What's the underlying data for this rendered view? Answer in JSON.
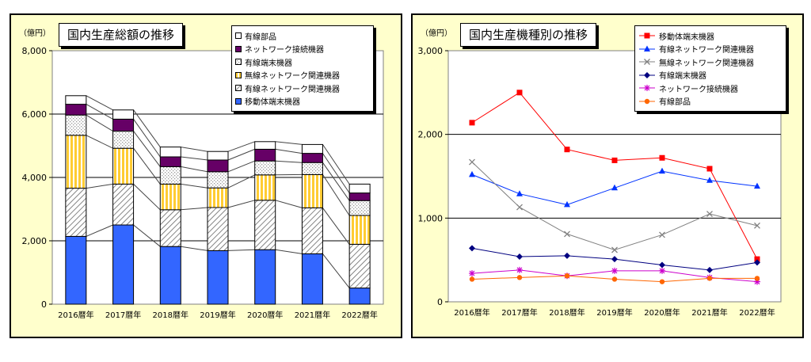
{
  "chart_data": [
    {
      "type": "bar",
      "stacked": true,
      "title": "国内生産総額の推移",
      "unit": "（億円）",
      "ylim": [
        0,
        8000
      ],
      "yticks": [
        "0",
        "2,000",
        "4,000",
        "6,000",
        "8,000"
      ],
      "categories": [
        "2016暦年",
        "2017暦年",
        "2018暦年",
        "2019暦年",
        "2020暦年",
        "2021暦年",
        "2022暦年"
      ],
      "legend": [
        "有線部品",
        "ネットワーク接続機器",
        "有線端末機器",
        "無線ネットワーク関連機器",
        "有線ネットワーク関連機器",
        "移動体端末機器"
      ],
      "series": [
        {
          "name": "移動体端末機器",
          "fill": "#3366ff",
          "values": [
            2140,
            2500,
            1820,
            1690,
            1720,
            1590,
            510
          ]
        },
        {
          "name": "有線ネットワーク関連機器",
          "fill": "hatch",
          "values": [
            1520,
            1290,
            1160,
            1360,
            1560,
            1450,
            1380
          ]
        },
        {
          "name": "無線ネットワーク関連機器",
          "fill": "vstripe",
          "values": [
            1670,
            1130,
            810,
            620,
            800,
            1050,
            910
          ]
        },
        {
          "name": "有線端末機器",
          "fill": "dots",
          "values": [
            640,
            540,
            550,
            510,
            440,
            380,
            470
          ]
        },
        {
          "name": "ネットワーク接続機器",
          "fill": "#660066",
          "values": [
            340,
            380,
            310,
            370,
            370,
            290,
            240
          ]
        },
        {
          "name": "有線部品",
          "fill": "#ffffff",
          "values": [
            270,
            290,
            310,
            270,
            240,
            280,
            280
          ]
        }
      ]
    },
    {
      "type": "line",
      "title": "国内生産機種別の推移",
      "unit": "（億円）",
      "ylim": [
        0,
        3000
      ],
      "yticks": [
        "0",
        "1,000",
        "2,000",
        "3,000"
      ],
      "categories": [
        "2016暦年",
        "2017暦年",
        "2018暦年",
        "2019暦年",
        "2020暦年",
        "2021暦年",
        "2022暦年"
      ],
      "series": [
        {
          "name": "移動体端末機器",
          "color": "#ff0000",
          "marker": "square",
          "values": [
            2140,
            2500,
            1820,
            1690,
            1720,
            1590,
            510
          ]
        },
        {
          "name": "有線ネットワーク関連機器",
          "color": "#0033ff",
          "marker": "triangle",
          "values": [
            1520,
            1290,
            1160,
            1360,
            1560,
            1450,
            1380
          ]
        },
        {
          "name": "無線ネットワーク関連機器",
          "color": "#808080",
          "marker": "x",
          "values": [
            1670,
            1130,
            810,
            620,
            800,
            1050,
            910
          ]
        },
        {
          "name": "有線端末機器",
          "color": "#000080",
          "marker": "diamond",
          "values": [
            640,
            540,
            550,
            510,
            440,
            380,
            470
          ]
        },
        {
          "name": "ネットワーク接続機器",
          "color": "#cc00cc",
          "marker": "asterisk",
          "values": [
            340,
            380,
            310,
            370,
            370,
            290,
            240
          ]
        },
        {
          "name": "有線部品",
          "color": "#ff6600",
          "marker": "circle",
          "values": [
            270,
            290,
            310,
            270,
            240,
            280,
            280
          ]
        }
      ]
    }
  ]
}
